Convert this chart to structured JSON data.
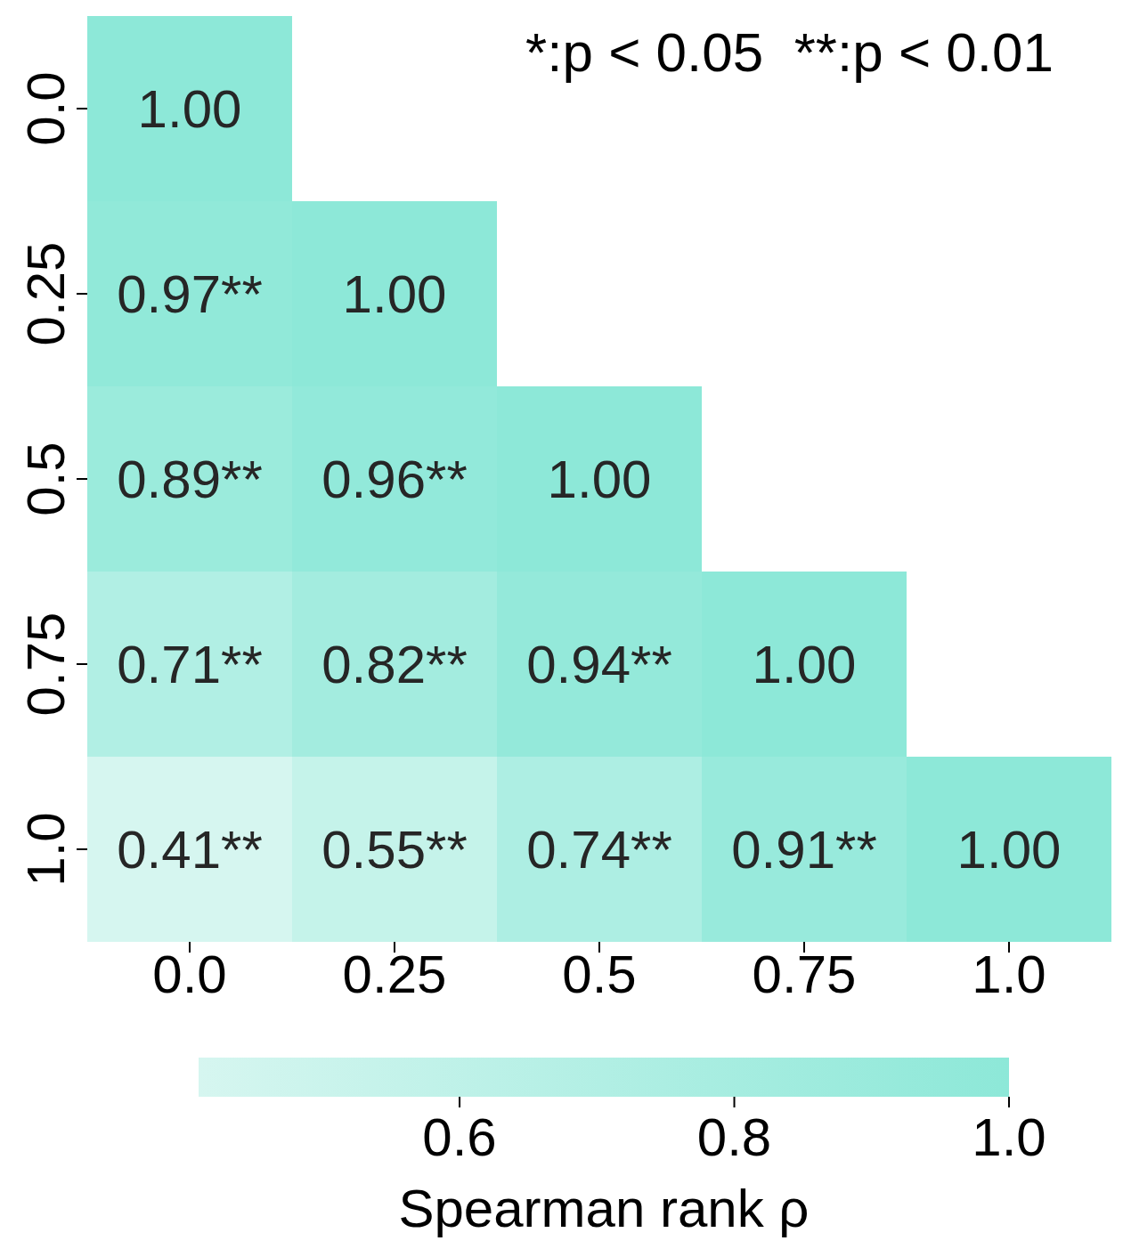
{
  "chart_data": {
    "type": "heatmap",
    "categories": [
      "0.0",
      "0.25",
      "0.5",
      "0.75",
      "1.0"
    ],
    "y_categories": [
      "0.0",
      "0.25",
      "0.5",
      "0.75",
      "1.0"
    ],
    "cells": [
      [
        1.0,
        null,
        null,
        null,
        null
      ],
      [
        0.97,
        1.0,
        null,
        null,
        null
      ],
      [
        0.89,
        0.96,
        1.0,
        null,
        null
      ],
      [
        0.71,
        0.82,
        0.94,
        1.0,
        null
      ],
      [
        0.41,
        0.55,
        0.74,
        0.91,
        1.0
      ]
    ],
    "cell_labels": [
      [
        "1.00",
        null,
        null,
        null,
        null
      ],
      [
        "0.97**",
        "1.00",
        null,
        null,
        null
      ],
      [
        "0.89**",
        "0.96**",
        "1.00",
        null,
        null
      ],
      [
        "0.71**",
        "0.82**",
        "0.94**",
        "1.00",
        null
      ],
      [
        "0.41**",
        "0.55**",
        "0.74**",
        "0.91**",
        "1.00"
      ]
    ],
    "clim": [
      0.41,
      1.0
    ],
    "cticks": [
      0.6,
      0.8,
      {
        "value": 1.0,
        "label": "1.0"
      }
    ],
    "clabel": "Spearman rank ρ",
    "annotations": [
      "*:p < 0.05  **:p < 0.01"
    ]
  }
}
